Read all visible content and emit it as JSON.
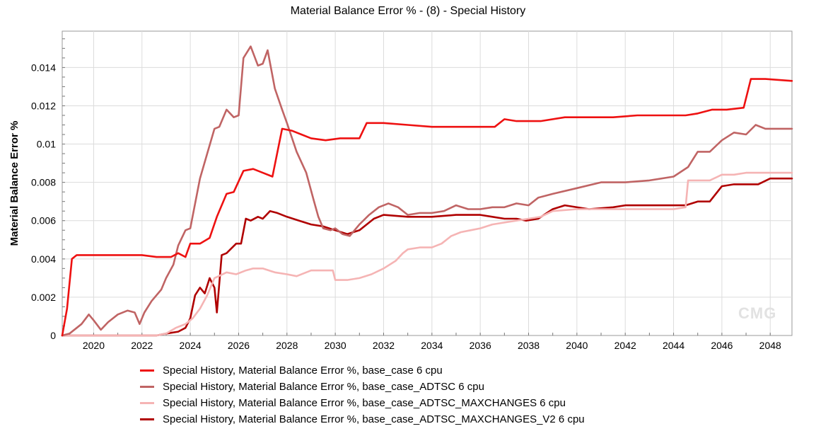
{
  "chart_data": {
    "type": "line",
    "title": "Material Balance Error % - (8) - Special History",
    "xlabel": "",
    "ylabel": "Material Balance Error %",
    "xlim": [
      2018.7,
      2048.9
    ],
    "ylim": [
      0,
      0.0159
    ],
    "x_ticks": [
      2020,
      2022,
      2024,
      2026,
      2028,
      2030,
      2032,
      2034,
      2036,
      2038,
      2040,
      2042,
      2044,
      2046,
      2048
    ],
    "x_tick_labels": [
      "2020",
      "2022",
      "2024",
      "2026",
      "2028",
      "2030",
      "2032",
      "2034",
      "2036",
      "2038",
      "2040",
      "2042",
      "2044",
      "2046",
      "2048"
    ],
    "y_ticks": [
      0,
      0.002,
      0.004,
      0.006,
      0.008,
      0.01,
      0.012,
      0.014
    ],
    "y_tick_labels": [
      "0",
      "0.002",
      "0.004",
      "0.006",
      "0.008",
      "0.01",
      "0.012",
      "0.014"
    ],
    "grid": true,
    "legend_position": "bottom",
    "series": [
      {
        "name": "Special History, Material Balance Error %, base_case 6 cpu",
        "color": "#ee1111",
        "x": [
          2018.7,
          2018.9,
          2019.1,
          2019.3,
          2019.5,
          2020.0,
          2021.0,
          2022.0,
          2022.6,
          2023.0,
          2023.2,
          2023.5,
          2023.8,
          2024.0,
          2024.4,
          2024.8,
          2025.1,
          2025.5,
          2025.8,
          2026.2,
          2026.6,
          2027.0,
          2027.4,
          2027.8,
          2028.2,
          2028.6,
          2029.0,
          2029.6,
          2030.2,
          2030.5,
          2031.0,
          2031.3,
          2031.6,
          2032.0,
          2033.0,
          2034.0,
          2035.0,
          2036.0,
          2036.6,
          2037.0,
          2037.5,
          2038.5,
          2039.5,
          2040.5,
          2041.5,
          2042.5,
          2043.5,
          2044.5,
          2045.0,
          2045.6,
          2046.2,
          2046.9,
          2047.2,
          2047.8,
          2048.9
        ],
        "values": [
          0,
          0.0014,
          0.004,
          0.0042,
          0.0042,
          0.0042,
          0.0042,
          0.0042,
          0.0041,
          0.0041,
          0.0041,
          0.0043,
          0.0041,
          0.0048,
          0.0048,
          0.0051,
          0.0062,
          0.0074,
          0.0075,
          0.0086,
          0.0087,
          0.0085,
          0.0083,
          0.0108,
          0.0107,
          0.0105,
          0.0103,
          0.0102,
          0.0103,
          0.0103,
          0.0103,
          0.0111,
          0.0111,
          0.0111,
          0.011,
          0.0109,
          0.0109,
          0.0109,
          0.0109,
          0.0113,
          0.0112,
          0.0112,
          0.0114,
          0.0114,
          0.0114,
          0.0115,
          0.0115,
          0.0115,
          0.0116,
          0.0118,
          0.0118,
          0.0119,
          0.0134,
          0.0134,
          0.0133
        ]
      },
      {
        "name": "Special History, Material Balance Error %, base_case_ADTSC 6 cpu",
        "color": "#c06464",
        "x": [
          2018.7,
          2019.0,
          2019.5,
          2019.8,
          2020.0,
          2020.3,
          2020.6,
          2021.0,
          2021.4,
          2021.7,
          2021.9,
          2022.1,
          2022.4,
          2022.8,
          2023.0,
          2023.3,
          2023.5,
          2023.8,
          2024.0,
          2024.4,
          2024.7,
          2025.0,
          2025.2,
          2025.5,
          2025.8,
          2026.0,
          2026.2,
          2026.5,
          2026.8,
          2027.0,
          2027.2,
          2027.5,
          2027.8,
          2028.0,
          2028.4,
          2028.8,
          2029.1,
          2029.3,
          2029.5,
          2029.8,
          2030.0,
          2030.3,
          2030.6,
          2031.0,
          2031.4,
          2031.8,
          2032.2,
          2032.6,
          2033.0,
          2033.5,
          2034.0,
          2034.5,
          2035.0,
          2035.5,
          2036.0,
          2036.5,
          2037.0,
          2037.5,
          2038.0,
          2038.4,
          2039.0,
          2040.0,
          2041.0,
          2042.0,
          2043.0,
          2044.0,
          2044.6,
          2045.0,
          2045.5,
          2046.0,
          2046.5,
          2047.0,
          2047.4,
          2047.8,
          2048.9
        ],
        "values": [
          0,
          0.0001,
          0.0006,
          0.0011,
          0.0008,
          0.0003,
          0.0007,
          0.0011,
          0.0013,
          0.0012,
          0.0006,
          0.0012,
          0.0018,
          0.0024,
          0.003,
          0.0037,
          0.0047,
          0.0055,
          0.0056,
          0.0082,
          0.0095,
          0.0108,
          0.0109,
          0.0118,
          0.0114,
          0.0115,
          0.0145,
          0.0151,
          0.0141,
          0.0142,
          0.0149,
          0.0129,
          0.0118,
          0.0111,
          0.0096,
          0.0085,
          0.0071,
          0.0062,
          0.0056,
          0.0055,
          0.0056,
          0.0053,
          0.0052,
          0.0058,
          0.0063,
          0.0067,
          0.0069,
          0.0067,
          0.0063,
          0.0064,
          0.0064,
          0.0065,
          0.0068,
          0.0066,
          0.0066,
          0.0067,
          0.0067,
          0.0069,
          0.0068,
          0.0072,
          0.0074,
          0.0077,
          0.008,
          0.008,
          0.0081,
          0.0083,
          0.0088,
          0.0096,
          0.0096,
          0.0102,
          0.0106,
          0.0105,
          0.011,
          0.0108,
          0.0108
        ]
      },
      {
        "name": "Special History, Material Balance Error %, base_case_ADTSC_MAXCHANGES 6 cpu",
        "color": "#f5b4b4",
        "x": [
          2018.7,
          2019.0,
          2020.0,
          2021.0,
          2022.0,
          2022.6,
          2023.0,
          2023.4,
          2023.8,
          2024.1,
          2024.4,
          2024.7,
          2025.0,
          2025.5,
          2025.9,
          2026.3,
          2026.6,
          2027.0,
          2027.5,
          2028.0,
          2028.4,
          2029.0,
          2029.5,
          2029.9,
          2030.0,
          2030.5,
          2031.0,
          2031.5,
          2032.0,
          2032.5,
          2032.8,
          2033.0,
          2033.5,
          2034.0,
          2034.4,
          2034.8,
          2035.2,
          2035.6,
          2036.0,
          2036.5,
          2037.0,
          2037.5,
          2038.0,
          2038.5,
          2039.0,
          2040.0,
          2041.0,
          2042.0,
          2043.0,
          2044.0,
          2044.5,
          2044.6,
          2045.5,
          2046.0,
          2046.5,
          2047.0,
          2047.5,
          2048.0,
          2048.9
        ],
        "values": [
          0,
          0,
          0,
          0,
          0,
          0,
          0.0001,
          0.0004,
          0.0006,
          0.0009,
          0.0014,
          0.0021,
          0.003,
          0.0033,
          0.0032,
          0.0034,
          0.0035,
          0.0035,
          0.0033,
          0.0032,
          0.0031,
          0.0034,
          0.0034,
          0.0034,
          0.0029,
          0.0029,
          0.003,
          0.0032,
          0.0035,
          0.0039,
          0.0043,
          0.0045,
          0.0046,
          0.0046,
          0.0048,
          0.0052,
          0.0054,
          0.0055,
          0.0056,
          0.0058,
          0.0059,
          0.006,
          0.0061,
          0.0062,
          0.0065,
          0.0066,
          0.0066,
          0.0066,
          0.0066,
          0.0066,
          0.0067,
          0.0081,
          0.0081,
          0.0084,
          0.0084,
          0.0085,
          0.0085,
          0.0085,
          0.0085
        ]
      },
      {
        "name": "Special History, Material Balance Error %, base_case_ADTSC_MAXCHANGES_V2 6 cpu",
        "color": "#b00000",
        "x": [
          2018.7,
          2019.0,
          2020.0,
          2021.0,
          2022.0,
          2022.6,
          2023.0,
          2023.5,
          2023.8,
          2024.0,
          2024.2,
          2024.4,
          2024.6,
          2024.8,
          2025.0,
          2025.1,
          2025.3,
          2025.5,
          2025.9,
          2026.1,
          2026.3,
          2026.5,
          2026.8,
          2027.0,
          2027.3,
          2027.6,
          2028.0,
          2028.5,
          2029.0,
          2029.5,
          2030.0,
          2030.5,
          2031.0,
          2031.6,
          2032.0,
          2033.0,
          2034.0,
          2035.0,
          2036.0,
          2036.5,
          2037.0,
          2037.5,
          2037.9,
          2038.4,
          2039.0,
          2039.5,
          2040.5,
          2041.5,
          2042.0,
          2043.0,
          2044.0,
          2044.5,
          2045.0,
          2045.5,
          2046.0,
          2046.5,
          2047.0,
          2047.5,
          2048.0,
          2048.9
        ],
        "values": [
          0,
          0,
          0,
          0,
          0,
          0,
          0.0001,
          0.0002,
          0.0004,
          0.0009,
          0.0021,
          0.0025,
          0.0022,
          0.003,
          0.0025,
          0.0012,
          0.0042,
          0.0043,
          0.0048,
          0.0048,
          0.0061,
          0.006,
          0.0062,
          0.0061,
          0.0065,
          0.0064,
          0.0062,
          0.006,
          0.0058,
          0.0057,
          0.0055,
          0.0053,
          0.0055,
          0.0061,
          0.0063,
          0.0062,
          0.0062,
          0.0063,
          0.0063,
          0.0062,
          0.0061,
          0.0061,
          0.006,
          0.0061,
          0.0066,
          0.0068,
          0.0066,
          0.0067,
          0.0068,
          0.0068,
          0.0068,
          0.0068,
          0.007,
          0.007,
          0.0078,
          0.0079,
          0.0079,
          0.0079,
          0.0082,
          0.0082
        ]
      }
    ]
  },
  "watermark_text": "CMG"
}
